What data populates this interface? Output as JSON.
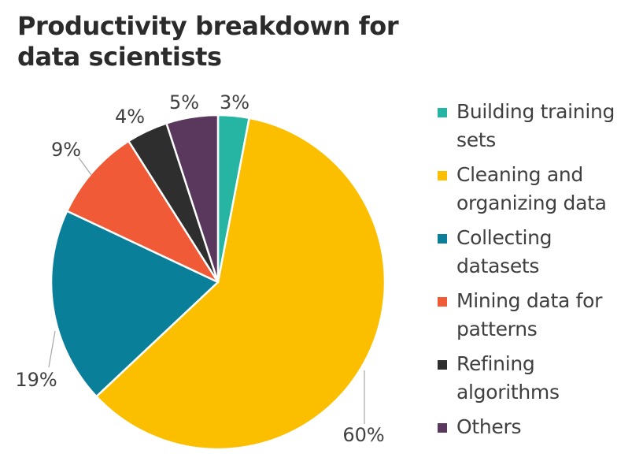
{
  "chart_data": {
    "type": "pie",
    "title": "Productivity breakdown for data scientists",
    "categories": [
      "Building training sets",
      "Cleaning and organizing data",
      "Collecting datasets",
      "Mining data for patterns",
      "Refining algorithms",
      "Others"
    ],
    "values": [
      3,
      60,
      19,
      9,
      4,
      5
    ],
    "data_labels": [
      "3%",
      "60%",
      "19%",
      "9%",
      "4%",
      "5%"
    ],
    "colors": [
      "#26b5a3",
      "#fbbf00",
      "#097f9a",
      "#f05a36",
      "#2e2e2e",
      "#5a375c"
    ],
    "legend": {
      "position": "right",
      "entries": [
        {
          "line1": "Building training",
          "line2": "sets"
        },
        {
          "line1": "Cleaning and",
          "line2": "organizing data"
        },
        {
          "line1": "Collecting",
          "line2": "datasets"
        },
        {
          "line1": "Mining data for",
          "line2": "patterns"
        },
        {
          "line1": "Refining",
          "line2": "algorithms"
        },
        {
          "line1": "Others",
          "line2": ""
        }
      ]
    }
  }
}
